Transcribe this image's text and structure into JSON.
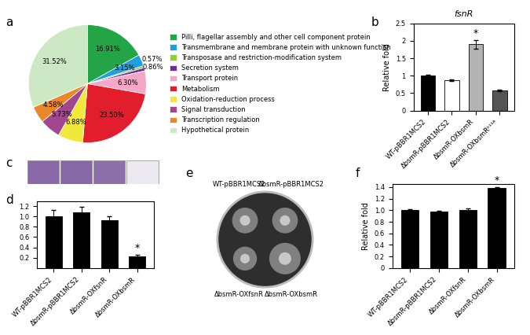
{
  "chart_data": [
    {
      "type": "pie",
      "title": "a",
      "categories": [
        "Pilli, flagellar assembly and other cell component protein",
        "Transmembrane and membrane protein with unknown function",
        "Transposase and restriction-modification system",
        "Secretion system",
        "Transport protein",
        "Metabolism",
        "Oxidation-reduction process",
        "Signal transduction",
        "Transcription regulation",
        "Hypothetical protein"
      ],
      "values": [
        16.91,
        3.15,
        0.57,
        0.86,
        6.3,
        23.5,
        6.88,
        5.73,
        4.58,
        31.52
      ],
      "value_labels": [
        "16.91%",
        "3.15%",
        "0.57%",
        "0.86%",
        "6.30%",
        "23.50%",
        "6.88%",
        "5.73%",
        "4.58%",
        "31.52%"
      ],
      "colors": [
        "#22a447",
        "#1e9fe0",
        "#8ccf3f",
        "#6f2e9e",
        "#f4a7c6",
        "#e21d2c",
        "#f2e83a",
        "#a1468f",
        "#e8882a",
        "#cde8c4"
      ],
      "legend": "center left"
    },
    {
      "type": "bar",
      "title": "b",
      "subtitle": "fsnR",
      "y_label": "Relative fold",
      "categories": [
        "WT-pBBR1MCS2",
        "ΔbsmR-pBBR1MCS2",
        "ΔbsmR-OXbsmR",
        "ΔbsmR-OXbsmRᴱ¹¹ᴬ"
      ],
      "values": [
        1.0,
        0.87,
        1.9,
        0.58
      ],
      "errors": [
        0.03,
        0.02,
        0.12,
        0.02
      ],
      "colors": [
        "#000000",
        "#ffffff",
        "#b3b3b3",
        "#555555"
      ],
      "ylim": [
        0,
        2.5
      ],
      "yticks": [
        0,
        0.5,
        1,
        1.5,
        2,
        2.5
      ],
      "annotations": [
        {
          "index": 2,
          "text": "*"
        }
      ]
    },
    {
      "type": "image",
      "title": "c"
    },
    {
      "type": "bar",
      "title": "d",
      "categories": [
        "WT-pBBR1MCS2",
        "ΔbsmR-pBBR1MCS2",
        "ΔbsmR-OXfsnR",
        "ΔbsmR-OXbsmR"
      ],
      "values": [
        1.0,
        1.08,
        0.93,
        0.23
      ],
      "errors": [
        0.12,
        0.1,
        0.08,
        0.03
      ],
      "color": "#000000",
      "ylim": [
        0,
        1.3
      ],
      "yticks": [
        0.2,
        0.4,
        0.6,
        0.8,
        {
          "value": 1,
          "label": "1.0"
        },
        1.2
      ],
      "annotations": [
        {
          "index": 3,
          "text": "*"
        }
      ]
    },
    {
      "type": "image",
      "title": "e",
      "categories": [
        "WT-pBBR1MCS2",
        "ΔbsmR-pBBR1MCS2",
        "ΔbsmR-OXfsnR",
        "ΔbsmR-OXbsmR"
      ]
    },
    {
      "type": "bar",
      "title": "f",
      "y_label": "Relative fold",
      "categories": [
        "WT-pBBR1MCS2",
        "ΔbsmR-pBBR1MCS2",
        "ΔbsmR-OXfsnR",
        "ΔbsmR-OXbsmR"
      ],
      "values": [
        1.0,
        0.98,
        1.0,
        1.39
      ],
      "errors": [
        0.02,
        0.01,
        0.03,
        0.01
      ],
      "color": "#000000",
      "ylim": [
        0,
        1.45
      ],
      "yticks": [
        0,
        0.2,
        0.4,
        0.6,
        0.8,
        {
          "value": 1,
          "label": "1.0"
        },
        1.2,
        1.4
      ],
      "annotations": [
        {
          "index": 3,
          "text": "*"
        }
      ]
    }
  ]
}
